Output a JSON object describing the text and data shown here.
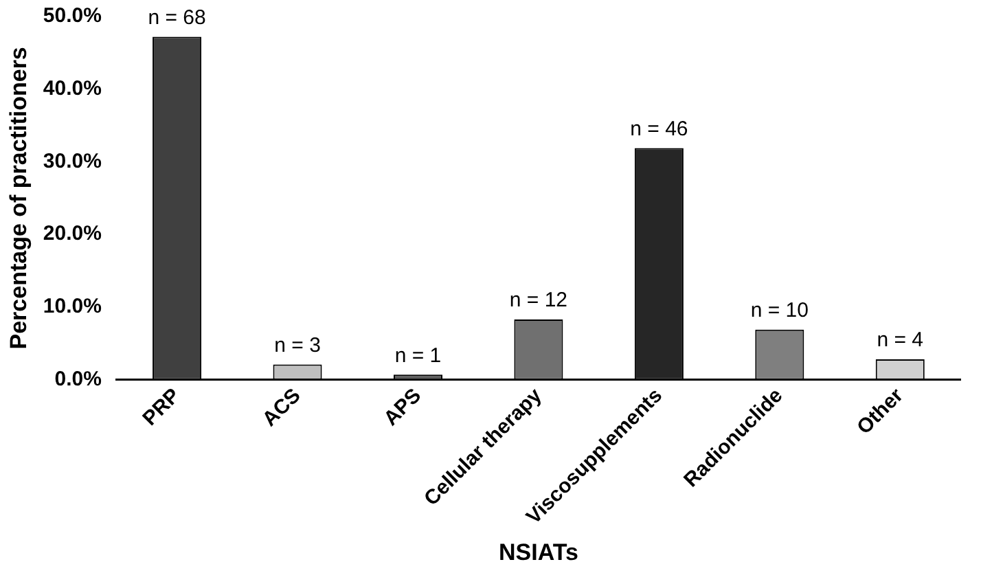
{
  "chart_data": {
    "type": "bar",
    "xlabel": "NSIATs",
    "ylabel": "Percentage of practitioners",
    "categories": [
      "PRP",
      "ACS",
      "APS",
      "Cellular therapy",
      "Viscosupplements",
      "Radionuclide",
      "Other"
    ],
    "values": [
      47.2,
      2.1,
      0.7,
      8.3,
      31.9,
      6.9,
      2.8
    ],
    "colors": [
      "#404040",
      "#bfbfbf",
      "#595959",
      "#707070",
      "#262626",
      "#7f7f7f",
      "#d0d0d0"
    ],
    "annotations": [
      {
        "text": "n = 68",
        "x": "PRP",
        "y": 47.2
      },
      {
        "text": "n = 3",
        "x": "ACS",
        "y": 2.1
      },
      {
        "text": "n = 1",
        "x": "APS",
        "y": 0.7
      },
      {
        "text": "n = 12",
        "x": "Cellular therapy",
        "y": 8.3
      },
      {
        "text": "n = 46",
        "x": "Viscosupplements",
        "y": 31.9
      },
      {
        "text": "n = 10",
        "x": "Radionuclide",
        "y": 6.9
      },
      {
        "text": "n = 4",
        "x": "Other",
        "y": 2.8
      }
    ],
    "ylim": [
      0,
      50
    ],
    "yticks": [
      {
        "value": 0,
        "label": "0.0%"
      },
      {
        "value": 10,
        "label": "10.0%"
      },
      {
        "value": 20,
        "label": "20.0%"
      },
      {
        "value": 30,
        "label": "30.0%"
      },
      {
        "value": 40,
        "label": "40.0%"
      },
      {
        "value": 50,
        "label": "50.0%"
      }
    ],
    "grid": false
  }
}
